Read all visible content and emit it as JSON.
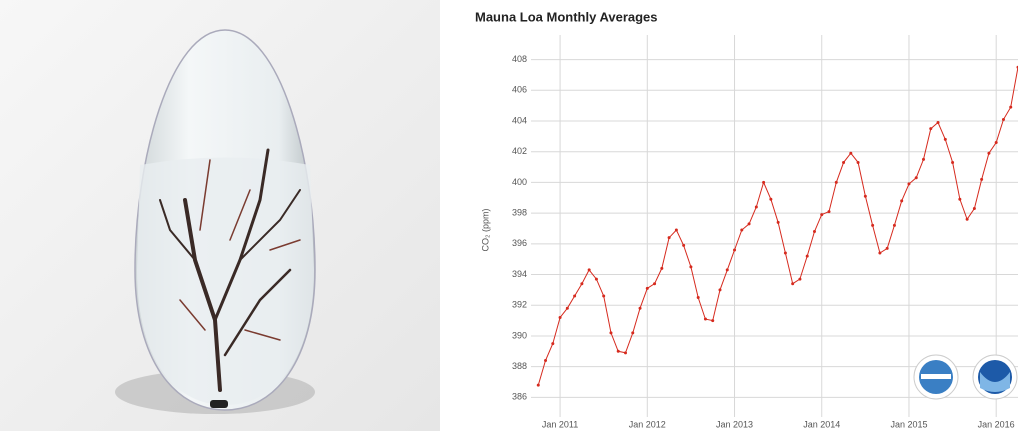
{
  "chart_data": {
    "type": "line",
    "title": "Mauna Loa Monthly Averages",
    "y_label": "CO₂ (ppm)",
    "x": [
      "2010-10",
      "2010-11",
      "2010-12",
      "2011-01",
      "2011-02",
      "2011-03",
      "2011-04",
      "2011-05",
      "2011-06",
      "2011-07",
      "2011-08",
      "2011-09",
      "2011-10",
      "2011-11",
      "2011-12",
      "2012-01",
      "2012-02",
      "2012-03",
      "2012-04",
      "2012-05",
      "2012-06",
      "2012-07",
      "2012-08",
      "2012-09",
      "2012-10",
      "2012-11",
      "2012-12",
      "2013-01",
      "2013-02",
      "2013-03",
      "2013-04",
      "2013-05",
      "2013-06",
      "2013-07",
      "2013-08",
      "2013-09",
      "2013-10",
      "2013-11",
      "2013-12",
      "2014-01",
      "2014-02",
      "2014-03",
      "2014-04",
      "2014-05",
      "2014-06",
      "2014-07",
      "2014-08",
      "2014-09",
      "2014-10",
      "2014-11",
      "2014-12",
      "2015-01",
      "2015-02",
      "2015-03",
      "2015-04",
      "2015-05",
      "2015-06",
      "2015-07",
      "2015-08",
      "2015-09",
      "2015-10",
      "2015-11",
      "2015-12",
      "2016-01",
      "2016-02",
      "2016-03",
      "2016-04"
    ],
    "series": [
      {
        "name": "CO₂",
        "color": "#d62a1e",
        "values": [
          386.8,
          388.4,
          389.5,
          391.2,
          391.8,
          392.6,
          393.4,
          394.3,
          393.7,
          392.6,
          390.2,
          389.0,
          388.9,
          390.2,
          391.8,
          393.1,
          393.4,
          394.4,
          396.4,
          396.9,
          395.9,
          394.5,
          392.5,
          391.1,
          391.0,
          393.0,
          394.3,
          395.6,
          396.9,
          397.3,
          398.4,
          400.0,
          398.9,
          397.4,
          395.4,
          393.4,
          393.7,
          395.2,
          396.8,
          397.9,
          398.1,
          400.0,
          401.3,
          401.9,
          401.3,
          399.1,
          397.2,
          395.4,
          395.7,
          397.2,
          398.8,
          399.9,
          400.3,
          401.5,
          403.5,
          403.9,
          402.8,
          401.3,
          398.9,
          397.6,
          398.3,
          400.2,
          401.9,
          402.6,
          404.1,
          404.9,
          407.5
        ]
      }
    ],
    "xlim": [
      "2010-09",
      "2016-04"
    ],
    "xticks": [
      {
        "value": "2011-01",
        "label": "Jan 2011"
      },
      {
        "value": "2012-01",
        "label": "Jan 2012"
      },
      {
        "value": "2013-01",
        "label": "Jan 2013"
      },
      {
        "value": "2014-01",
        "label": "Jan 2014"
      },
      {
        "value": "2015-01",
        "label": "Jan 2015"
      },
      {
        "value": "2016-01",
        "label": "Jan 2016"
      }
    ],
    "ylim": [
      384.2,
      409.6
    ],
    "yticks": [
      386,
      388,
      390,
      392,
      394,
      396,
      398,
      400,
      402,
      404,
      406,
      408
    ],
    "grid": true
  }
}
